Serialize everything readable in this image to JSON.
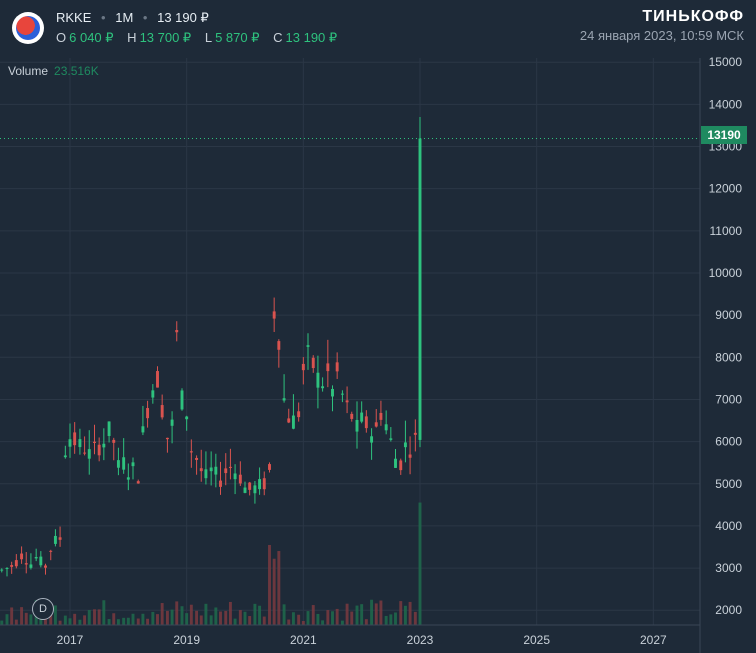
{
  "header": {
    "symbol": "RKKE",
    "interval": "1M",
    "price": "13 190 ₽",
    "ohlc": [
      {
        "key": "O",
        "value": "6 040 ₽"
      },
      {
        "key": "H",
        "value": "13 700 ₽"
      },
      {
        "key": "L",
        "value": "5 870 ₽"
      },
      {
        "key": "C",
        "value": "13 190 ₽"
      }
    ],
    "brand": "ТИНЬКОФФ",
    "datetime": "24 января 2023, 10:59 МСК"
  },
  "volume": {
    "label": "Volume",
    "value": "23.516K"
  },
  "badge": "D",
  "last_price_label": "13190",
  "colors": {
    "up": "#2ec27e",
    "down": "#d9534f",
    "up_vol": "#1f6b4c",
    "down_vol": "#7a3a3f",
    "bg": "#1e2a38",
    "grid": "#2b3746"
  },
  "chart_data": {
    "type": "candlestick",
    "interval": "1M",
    "y_ticks": [
      2000,
      3000,
      4000,
      5000,
      6000,
      7000,
      8000,
      9000,
      10000,
      11000,
      12000,
      13000,
      14000,
      15000
    ],
    "x_ticks": [
      "2017",
      "2019",
      "2021",
      "2023",
      "2025",
      "2027"
    ],
    "x_tick_years": [
      2017,
      2019,
      2021,
      2023,
      2025,
      2027
    ],
    "ylim": [
      1650,
      15100
    ],
    "xlim": [
      2015.8,
      2027.8
    ],
    "last_price": 13190,
    "grid": true,
    "anchors": [
      [
        2015.83,
        2950
      ],
      [
        2015.92,
        3000
      ],
      [
        2016.0,
        3050
      ],
      [
        2016.08,
        3150
      ],
      [
        2016.17,
        3300
      ],
      [
        2016.25,
        3200
      ],
      [
        2016.33,
        3100
      ],
      [
        2016.42,
        3250
      ],
      [
        2016.5,
        3150
      ],
      [
        2016.58,
        3050
      ],
      [
        2016.67,
        3450
      ],
      [
        2016.75,
        3650
      ],
      [
        2016.83,
        3700
      ],
      [
        2016.92,
        5800
      ],
      [
        2017.0,
        6100
      ],
      [
        2017.08,
        6000
      ],
      [
        2017.17,
        5900
      ],
      [
        2017.25,
        5850
      ],
      [
        2017.33,
        5700
      ],
      [
        2017.42,
        5800
      ],
      [
        2017.5,
        5900
      ],
      [
        2017.58,
        6000
      ],
      [
        2017.67,
        6250
      ],
      [
        2017.75,
        6000
      ],
      [
        2017.83,
        5400
      ],
      [
        2017.92,
        5500
      ],
      [
        2018.0,
        5300
      ],
      [
        2018.08,
        5350
      ],
      [
        2018.17,
        5200
      ],
      [
        2018.25,
        6200
      ],
      [
        2018.33,
        6800
      ],
      [
        2018.42,
        7300
      ],
      [
        2018.5,
        7500
      ],
      [
        2018.58,
        6800
      ],
      [
        2018.67,
        6100
      ],
      [
        2018.75,
        6400
      ],
      [
        2018.83,
        8500
      ],
      [
        2018.92,
        7000
      ],
      [
        2019.0,
        6700
      ],
      [
        2019.08,
        5800
      ],
      [
        2019.17,
        5600
      ],
      [
        2019.25,
        5300
      ],
      [
        2019.33,
        5150
      ],
      [
        2019.42,
        5300
      ],
      [
        2019.5,
        5200
      ],
      [
        2019.58,
        5100
      ],
      [
        2019.67,
        5300
      ],
      [
        2019.75,
        5400
      ],
      [
        2019.83,
        5300
      ],
      [
        2019.92,
        5150
      ],
      [
        2020.0,
        4900
      ],
      [
        2020.08,
        4850
      ],
      [
        2020.17,
        4900
      ],
      [
        2020.25,
        4950
      ],
      [
        2020.33,
        5000
      ],
      [
        2020.42,
        5300
      ],
      [
        2020.5,
        9100
      ],
      [
        2020.58,
        8500
      ],
      [
        2020.67,
        7000
      ],
      [
        2020.75,
        6600
      ],
      [
        2020.83,
        6500
      ],
      [
        2020.92,
        6700
      ],
      [
        2021.0,
        7700
      ],
      [
        2021.08,
        8000
      ],
      [
        2021.17,
        7800
      ],
      [
        2021.25,
        7500
      ],
      [
        2021.33,
        7400
      ],
      [
        2021.42,
        7600
      ],
      [
        2021.5,
        7200
      ],
      [
        2021.58,
        7600
      ],
      [
        2021.67,
        7100
      ],
      [
        2021.75,
        6800
      ],
      [
        2021.83,
        6600
      ],
      [
        2021.92,
        6300
      ],
      [
        2022.0,
        6500
      ],
      [
        2022.08,
        6400
      ],
      [
        2022.17,
        6200
      ],
      [
        2022.25,
        6300
      ],
      [
        2022.33,
        6700
      ],
      [
        2022.42,
        6400
      ],
      [
        2022.5,
        6000
      ],
      [
        2022.58,
        5600
      ],
      [
        2022.67,
        5500
      ],
      [
        2022.75,
        5900
      ],
      [
        2022.83,
        5850
      ],
      [
        2022.92,
        6040
      ],
      [
        2023.0,
        13190
      ]
    ],
    "candle_width_months": 0.6
  }
}
